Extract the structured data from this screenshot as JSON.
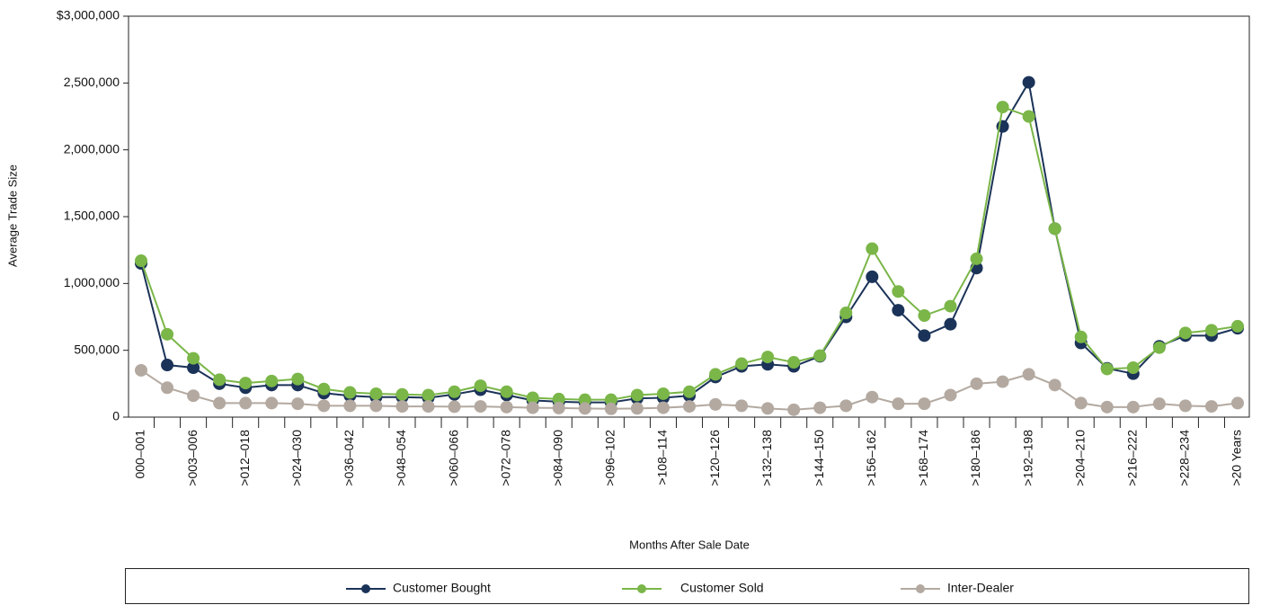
{
  "chart_data": {
    "type": "line",
    "x_label": "Months After Sale Date",
    "y_label": "Average Trade Size",
    "categories": [
      "000–001",
      null,
      ">003–006",
      null,
      ">012–018",
      null,
      ">024–030",
      null,
      ">036–042",
      null,
      ">048–054",
      null,
      ">060–066",
      null,
      ">072–078",
      null,
      ">084–090",
      null,
      ">096–102",
      null,
      ">108–114",
      null,
      ">120–126",
      null,
      ">132–138",
      null,
      ">144–150",
      null,
      ">156–162",
      null,
      ">168–174",
      null,
      ">180–186",
      null,
      ">192–198",
      null,
      ">204–210",
      null,
      ">216–222",
      null,
      ">228–234",
      null,
      ">20 Years"
    ],
    "series": [
      {
        "name": "Customer Bought",
        "color": "#1b3358",
        "values": [
          1150000,
          390000,
          370000,
          250000,
          220000,
          240000,
          240000,
          180000,
          160000,
          150000,
          150000,
          145000,
          170000,
          205000,
          165000,
          125000,
          115000,
          110000,
          110000,
          140000,
          145000,
          160000,
          300000,
          380000,
          395000,
          380000,
          455000,
          750000,
          1050000,
          800000,
          610000,
          695000,
          1115000,
          2175000,
          2505000,
          1410000,
          555000,
          365000,
          325000,
          530000,
          610000,
          610000,
          665000
        ]
      },
      {
        "name": "Customer Sold",
        "color": "#7ab648",
        "values": [
          1170000,
          620000,
          440000,
          280000,
          255000,
          270000,
          285000,
          210000,
          185000,
          175000,
          170000,
          165000,
          190000,
          235000,
          190000,
          145000,
          135000,
          130000,
          130000,
          165000,
          175000,
          190000,
          320000,
          400000,
          450000,
          410000,
          460000,
          780000,
          1260000,
          940000,
          760000,
          830000,
          1185000,
          2320000,
          2250000,
          1410000,
          600000,
          360000,
          370000,
          520000,
          630000,
          650000,
          680000
        ]
      },
      {
        "name": "Inter-Dealer",
        "color": "#b3a9a0",
        "values": [
          350000,
          220000,
          160000,
          105000,
          105000,
          105000,
          100000,
          85000,
          85000,
          85000,
          80000,
          80000,
          78000,
          80000,
          75000,
          70000,
          68000,
          65000,
          62000,
          65000,
          70000,
          80000,
          95000,
          85000,
          65000,
          55000,
          70000,
          85000,
          150000,
          100000,
          100000,
          165000,
          250000,
          265000,
          320000,
          240000,
          105000,
          75000,
          75000,
          100000,
          85000,
          80000,
          105000
        ]
      }
    ],
    "ylim": [
      0,
      3000000
    ],
    "yticks": [
      0,
      {
        "value": 500000,
        "label": "500,000"
      },
      {
        "value": 1000000,
        "label": "1,000,000"
      },
      {
        "value": 1500000,
        "label": "1,500,000"
      },
      {
        "value": 2000000,
        "label": "2,000,000"
      },
      {
        "value": 2500000,
        "label": "2,500,000"
      },
      {
        "value": 3000000,
        "label": "$3,000,000"
      }
    ],
    "legend": "bottom",
    "grid": false
  }
}
